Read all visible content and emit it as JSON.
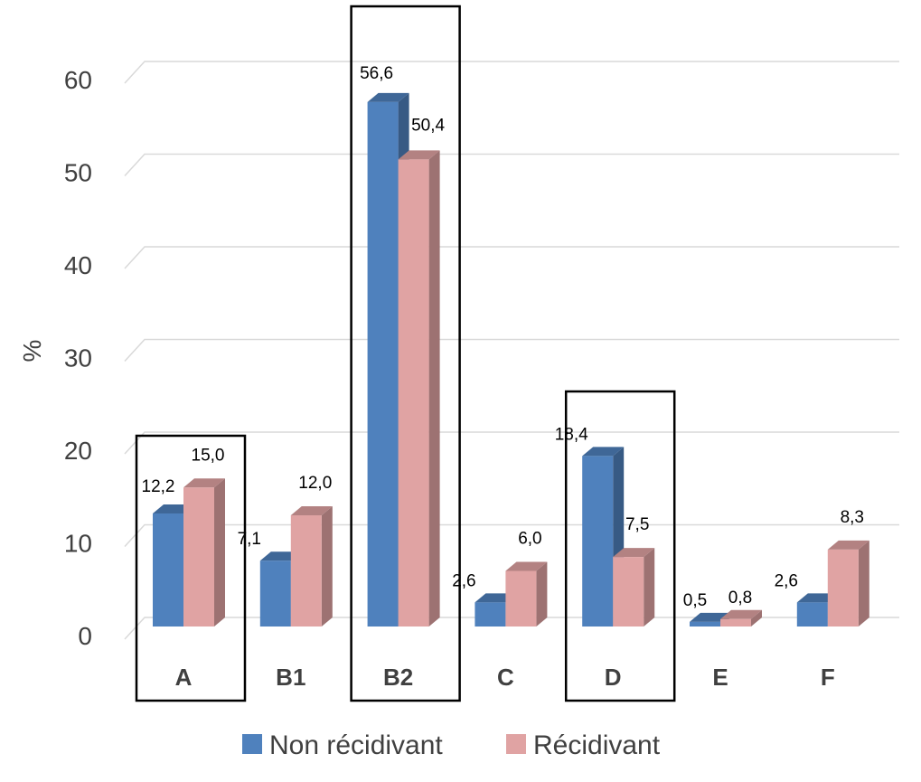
{
  "chart_data": {
    "type": "bar",
    "ylabel": "%",
    "ylim": [
      0,
      60
    ],
    "yticks": [
      0,
      10,
      20,
      30,
      40,
      50,
      60
    ],
    "categories": [
      "A",
      "B1",
      "B2",
      "C",
      "D",
      "E",
      "F"
    ],
    "highlighted_categories": [
      "A",
      "B2",
      "D"
    ],
    "series": [
      {
        "name": "Non récidivant",
        "values": [
          12.2,
          7.1,
          56.6,
          2.6,
          18.4,
          0.5,
          2.6
        ],
        "labels": [
          "12,2",
          "7,1",
          "56,6",
          "2,6",
          "18,4",
          "0,5",
          "2,6"
        ],
        "color": "#4F81BD"
      },
      {
        "name": "Récidivant",
        "values": [
          15.0,
          12.0,
          50.4,
          6.0,
          7.5,
          0.8,
          8.3
        ],
        "labels": [
          "15,0",
          "12,0",
          "50,4",
          "6,0",
          "7,5",
          "0,8",
          "8,3"
        ],
        "color": "#E0A3A3"
      }
    ],
    "grid": true,
    "legend_position": "bottom",
    "style": "3d-clustered-column"
  }
}
